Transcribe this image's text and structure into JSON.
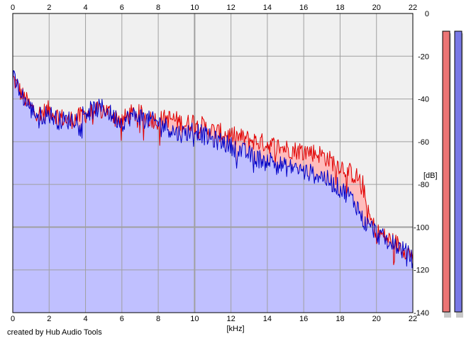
{
  "footer": {
    "credit": "created by Hub Audio Tools"
  },
  "chart_data": {
    "type": "area",
    "xlabel": "[kHz]",
    "ylabel": "[dB]",
    "xlim": [
      0,
      22
    ],
    "ylim": [
      -140,
      0
    ],
    "x_ticks": [
      "0",
      "2",
      "4",
      "6",
      "8",
      "10",
      "12",
      "14",
      "16",
      "18",
      "20",
      "22"
    ],
    "y_ticks": [
      "0",
      "-20",
      "-40",
      "-60",
      "-80",
      "-100",
      "-120",
      "-140"
    ],
    "grid": true,
    "colors": {
      "channel_1": "#e00000",
      "channel_2": "#0000c8",
      "fill_1": "#ffbcbc",
      "fill_2": "#c0c0ff",
      "plot_bg": "#f0f0f0",
      "grid": "#a0a0a0"
    },
    "series": [
      {
        "x": [
          0,
          0.5,
          1,
          1.5,
          2,
          2.5,
          3,
          3.5,
          4,
          4.5,
          5,
          5.5,
          6,
          6.5,
          7,
          7.5,
          8,
          8.5,
          9,
          9.5,
          10,
          10.5,
          11,
          11.5,
          12,
          12.5,
          13,
          13.5,
          14,
          14.5,
          15,
          15.5,
          16,
          16.5,
          17,
          17.5,
          18,
          18.5,
          19,
          19.25,
          19.5,
          19.75,
          20,
          20.5,
          21,
          21.5,
          22
        ],
        "values": [
          -30,
          -38,
          -44,
          -47,
          -45,
          -48,
          -50,
          -49,
          -47,
          -46,
          -45,
          -47,
          -50,
          -47,
          -47,
          -49,
          -50,
          -49,
          -50,
          -52,
          -50,
          -53,
          -55,
          -56,
          -57,
          -58,
          -59,
          -60,
          -61,
          -62,
          -63,
          -64,
          -64,
          -65,
          -66,
          -69,
          -71,
          -74,
          -77,
          -80,
          -93,
          -98,
          -102,
          -105,
          -107,
          -110,
          -113
        ]
      },
      {
        "x": [
          0,
          0.5,
          1,
          1.5,
          2,
          2.5,
          3,
          3.5,
          4,
          4.5,
          5,
          5.5,
          6,
          6.5,
          7,
          7.5,
          8,
          8.5,
          9,
          9.5,
          10,
          10.5,
          11,
          11.5,
          12,
          12.5,
          13,
          13.5,
          14,
          14.5,
          15,
          15.5,
          16,
          16.5,
          17,
          17.5,
          18,
          18.5,
          19,
          19.25,
          19.5,
          19.75,
          20,
          20.5,
          21,
          21.5,
          22
        ],
        "values": [
          -30,
          -38,
          -45,
          -48,
          -47,
          -50,
          -50,
          -49,
          -46,
          -45,
          -44,
          -48,
          -51,
          -48,
          -48,
          -50,
          -51,
          -53,
          -56,
          -56,
          -54,
          -57,
          -59,
          -60,
          -62,
          -64,
          -66,
          -68,
          -68,
          -70,
          -72,
          -72,
          -74,
          -75,
          -76,
          -79,
          -82,
          -85,
          -91,
          -97,
          -99,
          -100,
          -103,
          -106,
          -108,
          -111,
          -115
        ]
      }
    ]
  }
}
